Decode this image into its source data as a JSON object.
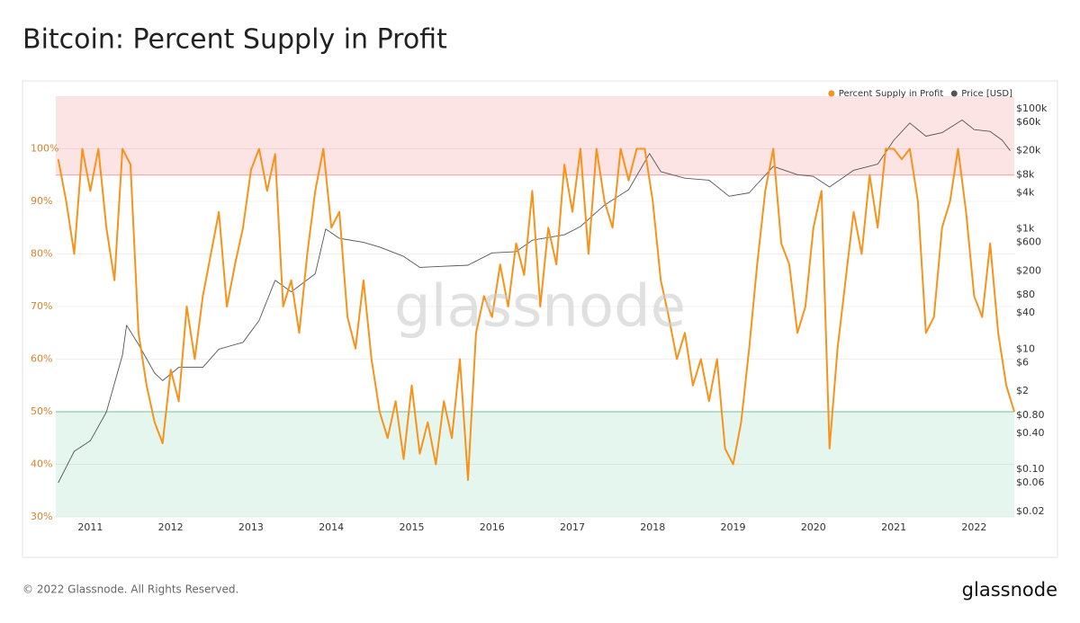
{
  "chart_data": {
    "type": "line",
    "title": "Bitcoin: Percent Supply in Profit",
    "watermark": "glassnode",
    "footer": "© 2022 Glassnode. All Rights Reserved.",
    "brand": "glassnode",
    "legend_position": "top-right",
    "xlim": [
      2010.57,
      2022.5
    ],
    "xticks": [
      2011,
      2012,
      2013,
      2014,
      2015,
      2016,
      2017,
      2018,
      2019,
      2020,
      2021,
      2022
    ],
    "ylim": [
      30,
      110
    ],
    "yticks": [
      {
        "value": 30,
        "label": "30%"
      },
      {
        "value": 40,
        "label": "40%"
      },
      {
        "value": 50,
        "label": "50%"
      },
      {
        "value": 60,
        "label": "60%"
      },
      {
        "value": 70,
        "label": "70%"
      },
      {
        "value": 80,
        "label": "80%"
      },
      {
        "value": 90,
        "label": "90%"
      },
      {
        "value": 100,
        "label": "100%"
      }
    ],
    "y2lim": [
      0.0162,
      162000
    ],
    "y2scale": "log",
    "y2ticks": [
      {
        "value": 0.02,
        "label": "$0.02"
      },
      {
        "value": 0.06,
        "label": "$0.06"
      },
      {
        "value": 0.1,
        "label": "$0.10"
      },
      {
        "value": 0.4,
        "label": "$0.40"
      },
      {
        "value": 0.8,
        "label": "$0.80"
      },
      {
        "value": 2,
        "label": "$2"
      },
      {
        "value": 6,
        "label": "$6"
      },
      {
        "value": 10,
        "label": "$10"
      },
      {
        "value": 40,
        "label": "$40"
      },
      {
        "value": 80,
        "label": "$80"
      },
      {
        "value": 200,
        "label": "$200"
      },
      {
        "value": 600,
        "label": "$600"
      },
      {
        "value": 1000,
        "label": "$1k"
      },
      {
        "value": 4000,
        "label": "$4k"
      },
      {
        "value": 8000,
        "label": "$8k"
      },
      {
        "value": 20000,
        "label": "$20k"
      },
      {
        "value": 60000,
        "label": "$60k"
      },
      {
        "value": 100000,
        "label": "$100k"
      }
    ],
    "grid": true,
    "bands": [
      {
        "from": 95,
        "to": 110,
        "color": "#fde4e4"
      },
      {
        "from": 30,
        "to": 50,
        "color": "#e5f6ef"
      }
    ],
    "series": [
      {
        "name": "Percent Supply in Profit",
        "color": "#f7931a",
        "x": [
          2010.6,
          2010.7,
          2010.8,
          2010.9,
          2011.0,
          2011.1,
          2011.2,
          2011.3,
          2011.4,
          2011.5,
          2011.6,
          2011.7,
          2011.8,
          2011.9,
          2012.0,
          2012.1,
          2012.2,
          2012.3,
          2012.4,
          2012.5,
          2012.6,
          2012.7,
          2012.8,
          2012.9,
          2013.0,
          2013.1,
          2013.2,
          2013.3,
          2013.4,
          2013.5,
          2013.6,
          2013.7,
          2013.8,
          2013.9,
          2014.0,
          2014.1,
          2014.2,
          2014.3,
          2014.4,
          2014.5,
          2014.6,
          2014.7,
          2014.8,
          2014.9,
          2015.0,
          2015.1,
          2015.2,
          2015.3,
          2015.4,
          2015.5,
          2015.6,
          2015.7,
          2015.8,
          2015.9,
          2016.0,
          2016.1,
          2016.2,
          2016.3,
          2016.4,
          2016.5,
          2016.6,
          2016.7,
          2016.8,
          2016.9,
          2017.0,
          2017.1,
          2017.2,
          2017.3,
          2017.4,
          2017.5,
          2017.6,
          2017.7,
          2017.8,
          2017.9,
          2018.0,
          2018.1,
          2018.2,
          2018.3,
          2018.4,
          2018.5,
          2018.6,
          2018.7,
          2018.8,
          2018.9,
          2019.0,
          2019.1,
          2019.2,
          2019.3,
          2019.4,
          2019.5,
          2019.6,
          2019.7,
          2019.8,
          2019.9,
          2020.0,
          2020.1,
          2020.2,
          2020.3,
          2020.4,
          2020.5,
          2020.6,
          2020.7,
          2020.8,
          2020.9,
          2021.0,
          2021.1,
          2021.2,
          2021.3,
          2021.4,
          2021.5,
          2021.6,
          2021.7,
          2021.8,
          2021.9,
          2022.0,
          2022.1,
          2022.2,
          2022.3,
          2022.4,
          2022.5
        ],
        "values": [
          98,
          90,
          80,
          100,
          92,
          100,
          85,
          75,
          100,
          97,
          65,
          55,
          48,
          44,
          58,
          52,
          70,
          60,
          72,
          80,
          88,
          70,
          78,
          85,
          96,
          100,
          92,
          99,
          70,
          75,
          65,
          80,
          92,
          100,
          85,
          88,
          68,
          62,
          75,
          60,
          50,
          45,
          52,
          41,
          55,
          42,
          48,
          40,
          52,
          45,
          60,
          37,
          65,
          72,
          68,
          78,
          70,
          82,
          76,
          92,
          70,
          85,
          78,
          97,
          88,
          100,
          80,
          100,
          90,
          85,
          100,
          94,
          100,
          100,
          90,
          75,
          68,
          60,
          65,
          55,
          60,
          52,
          60,
          43,
          40,
          48,
          62,
          78,
          92,
          100,
          82,
          78,
          65,
          70,
          85,
          92,
          43,
          62,
          75,
          88,
          80,
          95,
          85,
          100,
          100,
          98,
          100,
          90,
          65,
          68,
          85,
          90,
          100,
          88,
          72,
          68,
          82,
          65,
          55,
          50
        ]
      },
      {
        "name": "Price [USD]",
        "color": "#555555",
        "axis": "y2",
        "x": [
          2010.6,
          2010.8,
          2011.0,
          2011.2,
          2011.4,
          2011.45,
          2011.6,
          2011.8,
          2011.9,
          2012.1,
          2012.4,
          2012.6,
          2012.9,
          2013.1,
          2013.3,
          2013.5,
          2013.8,
          2013.93,
          2014.1,
          2014.4,
          2014.6,
          2014.9,
          2015.1,
          2015.4,
          2015.7,
          2016.0,
          2016.3,
          2016.5,
          2016.9,
          2017.1,
          2017.4,
          2017.7,
          2017.96,
          2018.1,
          2018.4,
          2018.7,
          2018.95,
          2019.2,
          2019.5,
          2019.8,
          2020.0,
          2020.2,
          2020.5,
          2020.8,
          2021.0,
          2021.2,
          2021.4,
          2021.6,
          2021.85,
          2022.0,
          2022.2,
          2022.35,
          2022.45
        ],
        "values": [
          0.06,
          0.2,
          0.3,
          0.9,
          8,
          25,
          12,
          4,
          3,
          5,
          5,
          10,
          13,
          30,
          140,
          90,
          180,
          1000,
          700,
          600,
          500,
          350,
          230,
          240,
          250,
          400,
          420,
          650,
          800,
          1100,
          2500,
          4500,
          18000,
          9000,
          7000,
          6500,
          3500,
          4000,
          11000,
          8000,
          7500,
          5000,
          9500,
          12000,
          30000,
          58000,
          35000,
          40000,
          65000,
          45000,
          42000,
          30000,
          20000
        ]
      }
    ]
  }
}
